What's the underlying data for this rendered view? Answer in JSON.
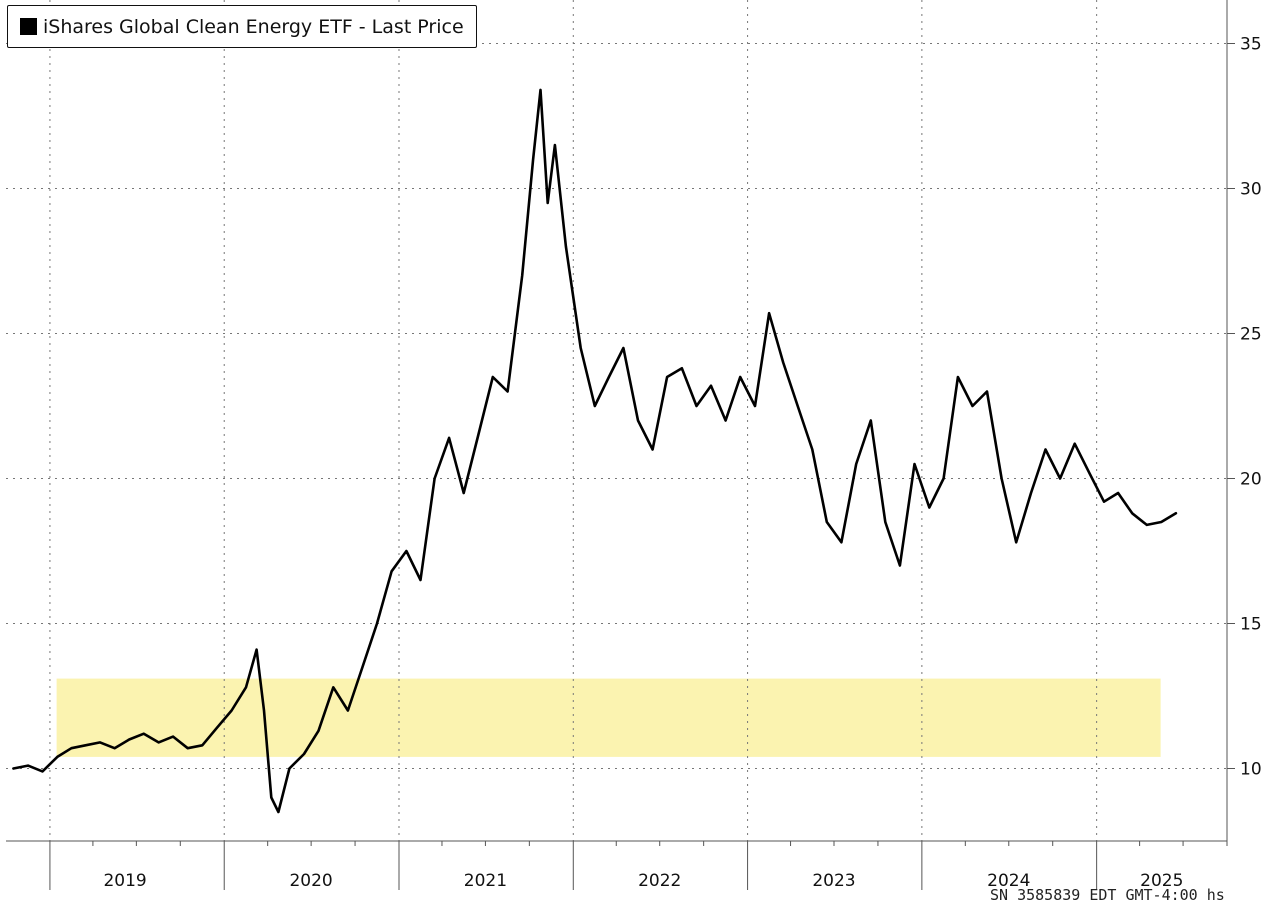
{
  "legend": {
    "series_label": "iShares Global Clean Energy ETF - Last Price"
  },
  "footer": {
    "text": "SN 3585839 EDT  GMT-4:00 hs"
  },
  "colors": {
    "line": "#000000",
    "highlight": "#fbf3b0",
    "grid": "#777777",
    "axis": "#555555"
  },
  "chart_data": {
    "type": "line",
    "title": "",
    "xlabel": "",
    "ylabel": "",
    "ylim": [
      7.5,
      36.5
    ],
    "y_ticks": [
      10,
      15,
      20,
      25,
      30,
      35
    ],
    "x_ticks": [
      "2019",
      "2020",
      "2021",
      "2022",
      "2023",
      "2024",
      "2025"
    ],
    "highlight_band": {
      "y_range": [
        10.4,
        13.1
      ],
      "x_range": [
        "2019-01",
        "2025-05"
      ]
    },
    "grid": true,
    "series": [
      {
        "name": "iShares Global Clean Energy ETF - Last Price",
        "points": [
          [
            "2018-10",
            10.0
          ],
          [
            "2018-11",
            10.1
          ],
          [
            "2018-12",
            9.9
          ],
          [
            "2019-01",
            10.4
          ],
          [
            "2019-02",
            10.7
          ],
          [
            "2019-03",
            10.8
          ],
          [
            "2019-04",
            10.9
          ],
          [
            "2019-05",
            10.7
          ],
          [
            "2019-06",
            11.0
          ],
          [
            "2019-07",
            11.2
          ],
          [
            "2019-08",
            10.9
          ],
          [
            "2019-09",
            11.1
          ],
          [
            "2019-10",
            10.7
          ],
          [
            "2019-11",
            10.8
          ],
          [
            "2019-12",
            11.4
          ],
          [
            "2020-01",
            12.0
          ],
          [
            "2020-02",
            12.8
          ],
          [
            "2020-03",
            14.1
          ],
          [
            "2020-03",
            12.0
          ],
          [
            "2020-04",
            9.0
          ],
          [
            "2020-04",
            8.5
          ],
          [
            "2020-05",
            10.0
          ],
          [
            "2020-06",
            10.5
          ],
          [
            "2020-07",
            11.3
          ],
          [
            "2020-08",
            12.8
          ],
          [
            "2020-09",
            12.0
          ],
          [
            "2020-10",
            13.5
          ],
          [
            "2020-11",
            15.0
          ],
          [
            "2020-12",
            16.8
          ],
          [
            "2021-01",
            17.5
          ],
          [
            "2021-02",
            16.5
          ],
          [
            "2021-03",
            20.0
          ],
          [
            "2021-04",
            21.4
          ],
          [
            "2021-05",
            19.5
          ],
          [
            "2021-06",
            21.5
          ],
          [
            "2021-07",
            23.5
          ],
          [
            "2021-08",
            23.0
          ],
          [
            "2021-09",
            27.0
          ],
          [
            "2021-10",
            31.0
          ],
          [
            "2021-10",
            33.4
          ],
          [
            "2021-11",
            29.5
          ],
          [
            "2021-11",
            31.5
          ],
          [
            "2021-12",
            28.0
          ],
          [
            "2022-01",
            24.5
          ],
          [
            "2022-02",
            22.5
          ],
          [
            "2022-03",
            23.5
          ],
          [
            "2022-04",
            24.5
          ],
          [
            "2022-05",
            22.0
          ],
          [
            "2022-06",
            21.0
          ],
          [
            "2022-07",
            23.5
          ],
          [
            "2022-08",
            23.8
          ],
          [
            "2022-09",
            22.5
          ],
          [
            "2022-10",
            23.2
          ],
          [
            "2022-11",
            22.0
          ],
          [
            "2022-12",
            23.5
          ],
          [
            "2023-01",
            22.5
          ],
          [
            "2023-02",
            25.7
          ],
          [
            "2023-03",
            24.0
          ],
          [
            "2023-04",
            22.5
          ],
          [
            "2023-05",
            21.0
          ],
          [
            "2023-06",
            18.5
          ],
          [
            "2023-07",
            17.8
          ],
          [
            "2023-08",
            20.5
          ],
          [
            "2023-09",
            22.0
          ],
          [
            "2023-10",
            18.5
          ],
          [
            "2023-11",
            17.0
          ],
          [
            "2023-12",
            20.5
          ],
          [
            "2024-01",
            19.0
          ],
          [
            "2024-02",
            20.0
          ],
          [
            "2024-03",
            23.5
          ],
          [
            "2024-04",
            22.5
          ],
          [
            "2024-05",
            23.0
          ],
          [
            "2024-06",
            20.0
          ],
          [
            "2024-07",
            17.8
          ],
          [
            "2024-08",
            19.5
          ],
          [
            "2024-09",
            21.0
          ],
          [
            "2024-10",
            20.0
          ],
          [
            "2024-11",
            21.2
          ],
          [
            "2024-12",
            20.2
          ],
          [
            "2025-01",
            19.2
          ],
          [
            "2025-02",
            19.5
          ],
          [
            "2025-03",
            18.8
          ],
          [
            "2025-04",
            18.4
          ],
          [
            "2025-05",
            18.5
          ],
          [
            "2025-06",
            18.8
          ]
        ]
      }
    ]
  }
}
